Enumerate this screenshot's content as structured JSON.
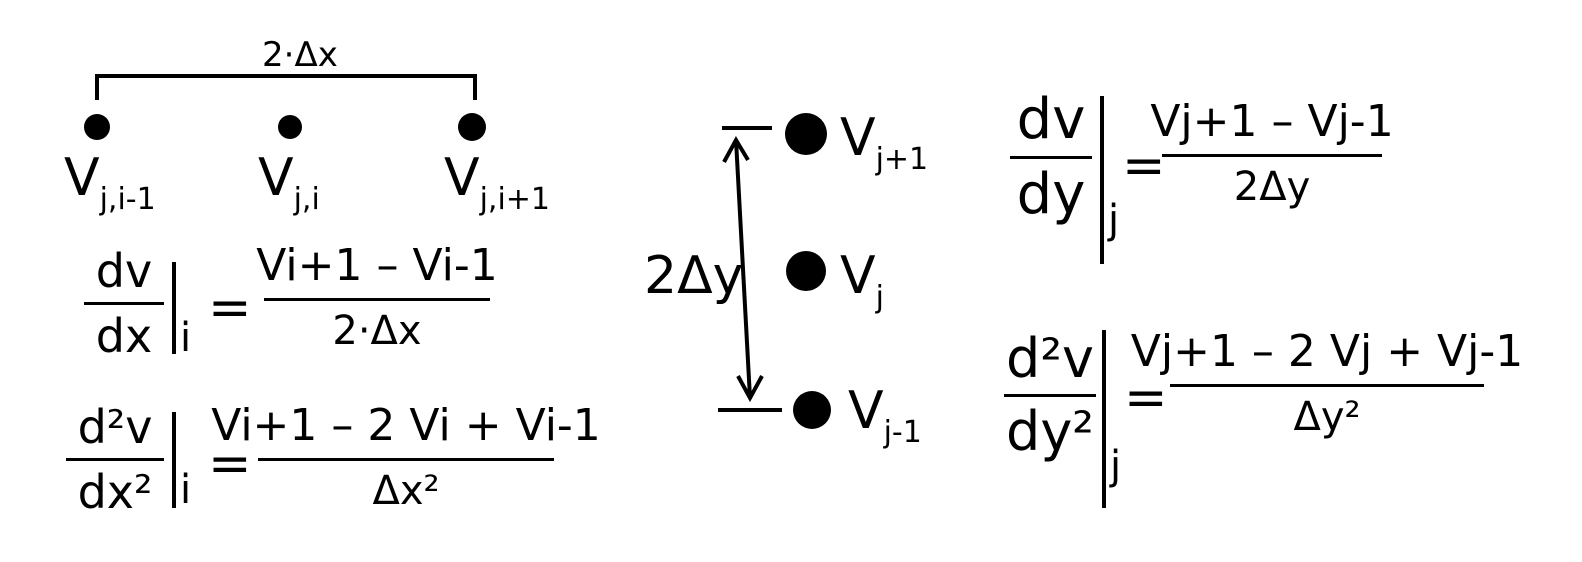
{
  "top_span_label": "2·Δx",
  "x_nodes": [
    {
      "main": "V",
      "sub": "j,i-1"
    },
    {
      "main": "V",
      "sub": "j,i"
    },
    {
      "main": "V",
      "sub": "j,i+1"
    }
  ],
  "y_nodes": [
    {
      "main": "V",
      "sub": "j+1"
    },
    {
      "main": "V",
      "sub": "j"
    },
    {
      "main": "V",
      "sub": "j-1"
    }
  ],
  "y_span_label": "2Δy",
  "eq_dx": {
    "lhs_num": "dv",
    "lhs_den": "dx",
    "at": "i",
    "rhs_num": "Vi+1 – Vi-1",
    "rhs_den": "2·Δx"
  },
  "eq_dx2": {
    "lhs_num": "d²v",
    "lhs_den": "dx²",
    "at": "i",
    "rhs_num": "Vi+1 – 2 Vi + Vi-1",
    "rhs_den": "Δx²"
  },
  "eq_dy": {
    "lhs_num": "dv",
    "lhs_den": "dy",
    "at": "j",
    "rhs_num": "Vj+1 – Vj-1",
    "rhs_den": "2Δy"
  },
  "eq_dy2": {
    "lhs_num": "d²v",
    "lhs_den": "dy²",
    "at": "j",
    "rhs_num": "Vj+1 – 2 Vj + Vj-1",
    "rhs_den": "Δy²"
  },
  "equals": "="
}
